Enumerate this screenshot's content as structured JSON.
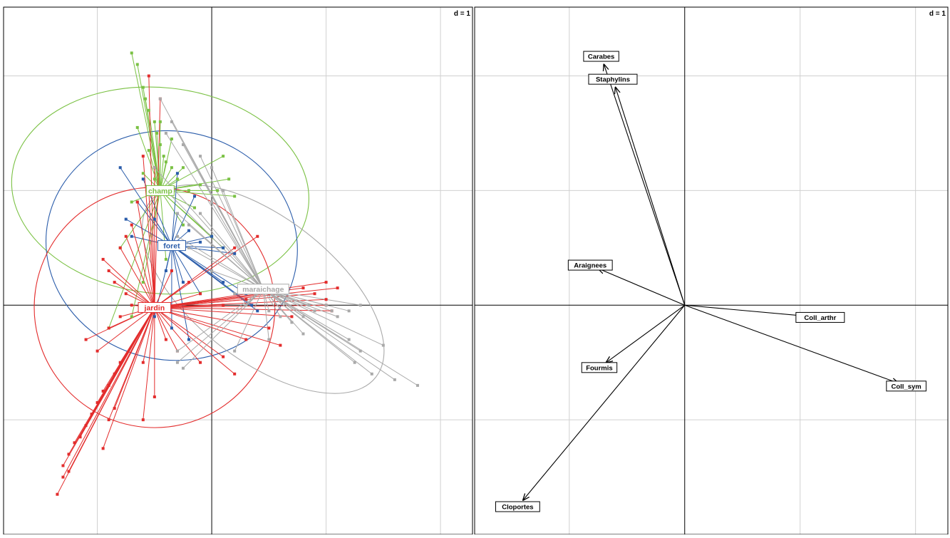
{
  "chart_data": [
    {
      "type": "scatter",
      "title": "",
      "xlim": [
        -1.82,
        2.28
      ],
      "ylim": [
        -2.0,
        2.6
      ],
      "grid": true,
      "grid_step": 1,
      "scale_label": "d = 1",
      "colors": {
        "champ": "#7ac143",
        "foret": "#2a5caa",
        "jardin": "#e32c2c",
        "maraichage": "#a9a9a9"
      },
      "groups": [
        {
          "name": "champ",
          "center": [
            -0.45,
            1.0
          ],
          "ellipse": {
            "rx": 0.9,
            "ry": 1.3,
            "rotation_deg": -84
          },
          "points": [
            [
              -0.7,
              2.2
            ],
            [
              -0.65,
              2.1
            ],
            [
              -0.6,
              1.9
            ],
            [
              -0.58,
              1.8
            ],
            [
              -0.55,
              1.7
            ],
            [
              -0.5,
              1.6
            ],
            [
              -0.48,
              1.5
            ],
            [
              -0.45,
              1.4
            ],
            [
              -0.42,
              1.3
            ],
            [
              -0.4,
              1.25
            ],
            [
              -0.35,
              1.2
            ],
            [
              -0.3,
              1.1
            ],
            [
              -0.25,
              1.2
            ],
            [
              -0.2,
              1.0
            ],
            [
              -0.1,
              1.05
            ],
            [
              0.05,
              1.0
            ],
            [
              0.15,
              1.1
            ],
            [
              0.2,
              0.95
            ],
            [
              -0.55,
              1.35
            ],
            [
              -0.6,
              1.15
            ],
            [
              -0.5,
              1.1
            ],
            [
              -0.35,
              1.45
            ],
            [
              0.1,
              1.3
            ],
            [
              -0.15,
              0.85
            ],
            [
              -0.7,
              0.9
            ],
            [
              -0.8,
              0.5
            ],
            [
              -0.25,
              0.7
            ],
            [
              0.0,
              0.6
            ],
            [
              0.1,
              0.5
            ],
            [
              -0.4,
              0.4
            ],
            [
              -0.9,
              -0.2
            ],
            [
              -0.7,
              -0.1
            ],
            [
              -0.6,
              0.2
            ],
            [
              -0.45,
              1.6
            ],
            [
              -0.65,
              1.55
            ]
          ]
        },
        {
          "name": "foret",
          "center": [
            -0.35,
            0.52
          ],
          "ellipse": {
            "rx": 1.0,
            "ry": 1.1,
            "rotation_deg": -79
          },
          "points": [
            [
              -0.8,
              1.2
            ],
            [
              -0.65,
              0.9
            ],
            [
              -0.5,
              0.75
            ],
            [
              -0.3,
              0.8
            ],
            [
              -0.2,
              0.65
            ],
            [
              -0.1,
              0.55
            ],
            [
              0.0,
              0.6
            ],
            [
              0.1,
              0.5
            ],
            [
              0.2,
              0.45
            ],
            [
              -0.7,
              0.6
            ],
            [
              -0.75,
              0.75
            ],
            [
              -0.4,
              0.3
            ],
            [
              -0.25,
              0.2
            ],
            [
              -0.1,
              0.1
            ],
            [
              0.1,
              0.2
            ],
            [
              0.3,
              0.1
            ],
            [
              0.35,
              0.0
            ],
            [
              0.4,
              -0.05
            ],
            [
              -0.5,
              -0.1
            ],
            [
              -0.35,
              -0.2
            ],
            [
              -0.2,
              -0.3
            ],
            [
              -0.6,
              1.1
            ],
            [
              -0.3,
              1.15
            ],
            [
              -0.15,
              0.95
            ]
          ]
        },
        {
          "name": "jardin",
          "center": [
            -0.5,
            -0.02
          ],
          "ellipse": {
            "rx": 1.05,
            "ry": 1.05,
            "rotation_deg": -60
          },
          "points": [
            [
              -1.35,
              -1.65
            ],
            [
              -1.3,
              -1.4
            ],
            [
              -1.25,
              -1.3
            ],
            [
              -1.2,
              -1.2
            ],
            [
              -1.15,
              -1.15
            ],
            [
              -1.1,
              -1.05
            ],
            [
              -1.05,
              -0.95
            ],
            [
              -1.0,
              -0.85
            ],
            [
              -0.95,
              -0.75
            ],
            [
              -0.9,
              -0.7
            ],
            [
              -0.85,
              -0.6
            ],
            [
              -0.8,
              -0.5
            ],
            [
              -1.0,
              -0.4
            ],
            [
              -1.1,
              -0.3
            ],
            [
              -0.9,
              -0.2
            ],
            [
              -0.8,
              -0.1
            ],
            [
              -0.7,
              0.0
            ],
            [
              -0.75,
              0.1
            ],
            [
              -0.85,
              0.2
            ],
            [
              -0.9,
              0.3
            ],
            [
              -0.95,
              0.4
            ],
            [
              -0.8,
              0.5
            ],
            [
              -0.75,
              0.6
            ],
            [
              -0.7,
              0.7
            ],
            [
              -0.65,
              0.9
            ],
            [
              -0.55,
              1.0
            ],
            [
              -0.5,
              1.2
            ],
            [
              -0.6,
              1.3
            ],
            [
              -0.45,
              1.8
            ],
            [
              -0.55,
              2.0
            ],
            [
              -0.35,
              0.3
            ],
            [
              -0.2,
              0.2
            ],
            [
              -0.1,
              0.1
            ],
            [
              0.1,
              0.0
            ],
            [
              0.3,
              0.05
            ],
            [
              0.5,
              0.1
            ],
            [
              0.8,
              0.15
            ],
            [
              1.0,
              0.2
            ],
            [
              1.1,
              0.15
            ],
            [
              1.0,
              0.05
            ],
            [
              0.7,
              -0.1
            ],
            [
              0.5,
              -0.2
            ],
            [
              0.3,
              -0.3
            ],
            [
              0.1,
              -0.45
            ],
            [
              0.2,
              -0.6
            ],
            [
              -0.1,
              -0.5
            ],
            [
              -0.3,
              -0.4
            ],
            [
              -0.4,
              -0.3
            ],
            [
              -0.6,
              -0.5
            ],
            [
              -0.5,
              -0.8
            ],
            [
              -0.6,
              -1.0
            ],
            [
              -0.95,
              -1.25
            ],
            [
              -0.9,
              -1.0
            ],
            [
              -0.85,
              -0.9
            ],
            [
              0.6,
              -0.35
            ],
            [
              0.4,
              0.6
            ],
            [
              0.2,
              0.5
            ],
            [
              1.05,
              -0.05
            ],
            [
              1.0,
              0.0
            ],
            [
              0.9,
              0.1
            ],
            [
              -1.3,
              -1.5
            ],
            [
              -1.25,
              -1.45
            ]
          ]
        },
        {
          "name": "maraichage",
          "center": [
            0.45,
            0.14
          ],
          "ellipse": {
            "rx": 1.25,
            "ry": 0.62,
            "rotation_deg": 38
          },
          "points": [
            [
              1.05,
              -0.05
            ],
            [
              1.1,
              -0.1
            ],
            [
              1.2,
              -0.05
            ],
            [
              1.3,
              0.0
            ],
            [
              1.0,
              0.0
            ],
            [
              0.9,
              -0.05
            ],
            [
              0.85,
              0.0
            ],
            [
              0.8,
              -0.1
            ],
            [
              1.5,
              -0.35
            ],
            [
              1.6,
              -0.65
            ],
            [
              1.8,
              -0.7
            ],
            [
              1.4,
              -0.6
            ],
            [
              1.3,
              -0.4
            ],
            [
              1.2,
              -0.3
            ],
            [
              0.8,
              -0.25
            ],
            [
              0.7,
              -0.15
            ],
            [
              0.6,
              -0.1
            ],
            [
              0.5,
              -0.05
            ],
            [
              0.3,
              0.0
            ],
            [
              0.2,
              0.1
            ],
            [
              0.0,
              0.3
            ],
            [
              -0.2,
              0.5
            ],
            [
              -0.3,
              0.8
            ],
            [
              -0.4,
              1.0
            ],
            [
              -0.5,
              1.2
            ],
            [
              -0.4,
              1.5
            ],
            [
              -0.45,
              1.8
            ],
            [
              -0.35,
              1.6
            ],
            [
              -0.25,
              1.4
            ],
            [
              -0.1,
              1.3
            ],
            [
              0.0,
              1.2
            ],
            [
              0.1,
              1.0
            ],
            [
              0.0,
              0.9
            ],
            [
              -0.1,
              0.8
            ],
            [
              -0.2,
              0.7
            ],
            [
              -0.3,
              0.6
            ],
            [
              -0.3,
              -0.4
            ],
            [
              -0.3,
              -0.5
            ],
            [
              -0.25,
              -0.55
            ],
            [
              0.2,
              -0.4
            ],
            [
              0.5,
              -0.3
            ],
            [
              1.25,
              -0.5
            ]
          ]
        }
      ]
    },
    {
      "type": "scatter",
      "title": "",
      "xlim": [
        -1.82,
        2.28
      ],
      "ylim": [
        -2.0,
        2.6
      ],
      "grid": true,
      "grid_step": 1,
      "scale_label": "d = 1",
      "arrows": [
        {
          "name": "Carabes",
          "x": -0.7,
          "y": 2.1
        },
        {
          "name": "Staphylins",
          "x": -0.6,
          "y": 1.9
        },
        {
          "name": "Araignees",
          "x": -0.75,
          "y": 0.32
        },
        {
          "name": "Coll_arthr",
          "x": 1.1,
          "y": -0.1
        },
        {
          "name": "Coll_sym",
          "x": 1.85,
          "y": -0.68
        },
        {
          "name": "Fourmis",
          "x": -0.68,
          "y": -0.5
        },
        {
          "name": "Cloportes",
          "x": -1.4,
          "y": -1.7
        }
      ]
    }
  ]
}
